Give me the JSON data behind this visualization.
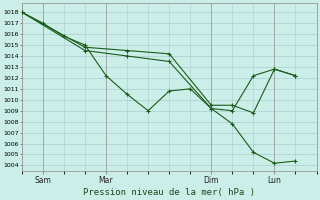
{
  "bg_color": "#cceee8",
  "grid_color": "#aacccc",
  "line_color": "#1a5c1a",
  "xlabel_text": "Pression niveau de la mer( hPa )",
  "xtick_labels": [
    "Sam",
    "Mar",
    "Dim",
    "Lun"
  ],
  "xtick_positions": [
    1,
    4,
    9,
    12
  ],
  "xlim": [
    0,
    14
  ],
  "ylim": [
    1003.5,
    1018.8
  ],
  "yticks": [
    1004,
    1005,
    1006,
    1007,
    1008,
    1009,
    1010,
    1011,
    1012,
    1013,
    1014,
    1015,
    1016,
    1017,
    1018
  ],
  "series1_x": [
    0,
    1,
    2,
    3,
    4,
    5,
    6,
    7,
    8,
    9,
    10,
    11,
    12,
    13
  ],
  "series1_y": [
    1018,
    1017,
    1015.8,
    1015.0,
    1012.2,
    1010.5,
    1009.0,
    1010.8,
    1011.0,
    1009.2,
    1007.8,
    1005.2,
    1004.2,
    1004.4
  ],
  "series2_x": [
    0,
    3,
    5,
    7,
    9,
    10,
    11,
    12,
    13
  ],
  "series2_y": [
    1018,
    1014.8,
    1014.5,
    1014.2,
    1009.5,
    1009.5,
    1008.8,
    1012.8,
    1012.2
  ],
  "series3_x": [
    0,
    3,
    5,
    7,
    9,
    10,
    11,
    12,
    13
  ],
  "series3_y": [
    1018,
    1014.5,
    1014.0,
    1013.5,
    1009.2,
    1009.0,
    1012.2,
    1012.8,
    1012.2
  ],
  "vline_x": [
    1,
    4,
    9,
    12
  ],
  "vline_color": "#aaaaaa"
}
